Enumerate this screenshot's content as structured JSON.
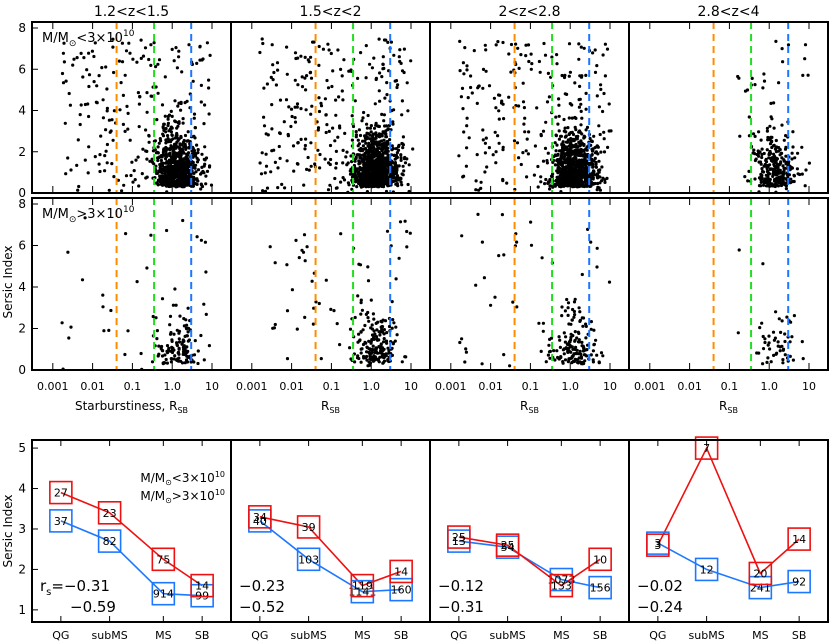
{
  "colors": {
    "orange": "#ff8c00",
    "green": "#22dd22",
    "blue": "#1e78ff",
    "red": "#ee1111",
    "text_blue": "#1e78ff",
    "text_red": "#ee1111"
  },
  "chart_data": [
    {
      "type": "scatter",
      "panels": [
        "1.2<z<1.5",
        "1.5<z<2",
        "2<z<2.8",
        "2.8<z<4"
      ],
      "ylabel": "Sersic Index",
      "xlabel_first": "Starburstiness, R",
      "xlabel_sub": "SB",
      "xlabel_other": "R",
      "xscale": "log",
      "xlim": [
        0.0003,
        30
      ],
      "xticks": [
        "0.001",
        "0.01",
        "0.1",
        "1.0",
        "10"
      ],
      "xtick_values": [
        0.001,
        0.01,
        0.1,
        1.0,
        10
      ],
      "ylim": [
        0,
        8
      ],
      "yticks": [
        "0",
        "2",
        "4",
        "6",
        "8"
      ],
      "rows": [
        {
          "label": "M/M",
          "label_sub": "⊙",
          "label_rel": "<3×10",
          "label_exp": "10"
        },
        {
          "label": "M/M",
          "label_sub": "⊙",
          "label_rel": ">3×10",
          "label_exp": "10"
        }
      ],
      "vlines": [
        {
          "x": 0.04,
          "color": "orange",
          "name": "QG/subMS"
        },
        {
          "x": 0.35,
          "color": "green",
          "name": "subMS/MS"
        },
        {
          "x": 3.0,
          "color": "blue",
          "name": "MS/SB"
        }
      ],
      "point_density": [
        [
          900,
          1200,
          1000,
          350
        ],
        [
          150,
          230,
          190,
          60
        ]
      ]
    },
    {
      "type": "line",
      "ylabel": "Sersic Index",
      "categories": [
        "QG",
        "subMS",
        "MS",
        "SB"
      ],
      "ylim": [
        0.7,
        5.2
      ],
      "yticks": [
        "1",
        "2",
        "3",
        "4",
        "5"
      ],
      "legend": {
        "low": "M/M",
        "low_rel": "<3×10",
        "high": "M/M",
        "high_rel": ">3×10",
        "sun": "⊙",
        "exp": "10"
      },
      "panels": [
        {
          "low": {
            "values": [
              3.2,
              2.7,
              1.4,
              1.35
            ],
            "counts": [
              "37",
              "82",
              "914",
              "99"
            ]
          },
          "high": {
            "values": [
              3.9,
              3.4,
              2.25,
              1.6
            ],
            "counts": [
              "27",
              "23",
              "75",
              "14"
            ]
          },
          "rs_prefix": "r",
          "rs_sub": "s",
          "rs_low": "=−0.31",
          "rs_high": "−0.59"
        },
        {
          "low": {
            "values": [
              3.2,
              2.25,
              1.45,
              1.5
            ],
            "counts": [
              "40",
              "103",
              "1141",
              "160"
            ]
          },
          "high": {
            "values": [
              3.3,
              3.05,
              1.6,
              1.95
            ],
            "counts": [
              "34",
              "39",
              "119",
              "14"
            ]
          },
          "rs_prefix": "",
          "rs_sub": "",
          "rs_low": "−0.23",
          "rs_high": "−0.52"
        },
        {
          "low": {
            "values": [
              2.7,
              2.55,
              1.75,
              1.55
            ],
            "counts": [
              "13",
              "54",
              "1073",
              "156"
            ]
          },
          "high": {
            "values": [
              2.8,
              2.6,
              1.6,
              2.25
            ],
            "counts": [
              "25",
              "25",
              "133",
              "10"
            ]
          },
          "rs_prefix": "",
          "rs_sub": "",
          "rs_low": "−0.12",
          "rs_high": "−0.31"
        },
        {
          "low": {
            "values": [
              2.65,
              2.0,
              1.55,
              1.7
            ],
            "counts": [
              "3",
              "12",
              "241",
              "92"
            ]
          },
          "high": {
            "values": [
              2.6,
              5.0,
              1.9,
              2.75
            ],
            "counts": [
              "3",
              "7",
              "20",
              "14"
            ]
          },
          "rs_prefix": "",
          "rs_sub": "",
          "rs_low": "−0.02",
          "rs_high": "−0.24"
        }
      ]
    }
  ]
}
